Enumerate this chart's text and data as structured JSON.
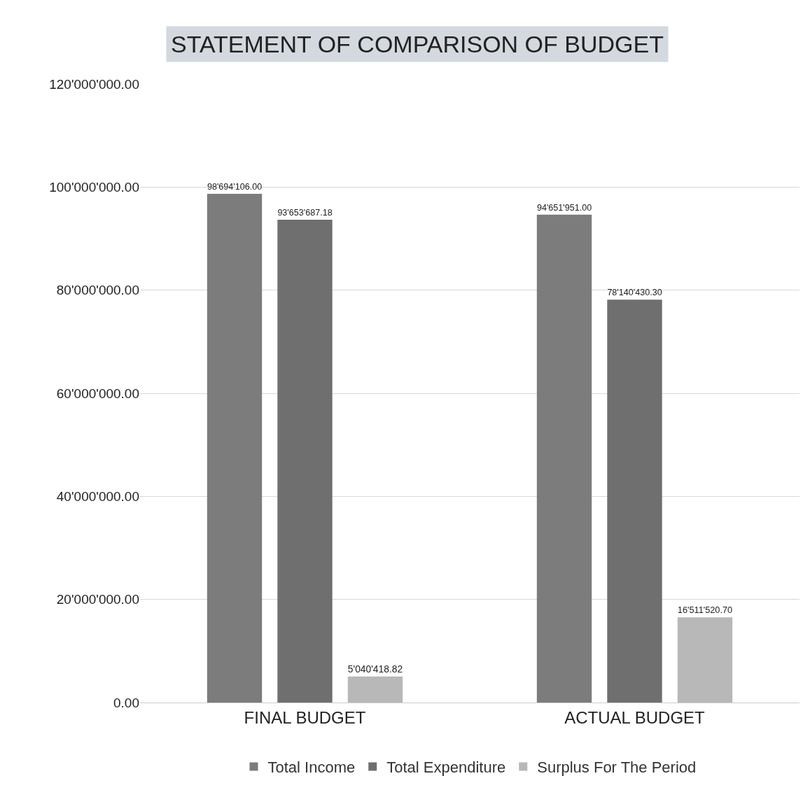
{
  "chart_data": {
    "type": "bar",
    "title": "STATEMENT OF COMPARISON OF BUDGET",
    "categories": [
      "FINAL BUDGET",
      "ACTUAL BUDGET"
    ],
    "series": [
      {
        "name": "Total Income",
        "color": "#7c7c7c",
        "values": [
          98694106.0,
          94651951.0
        ],
        "value_labels": [
          "98'694'106.00",
          "94'651'951.00"
        ]
      },
      {
        "name": "Total Expenditure",
        "color": "#6f6f6f",
        "values": [
          93653687.18,
          78140430.3
        ],
        "value_labels": [
          "93'653'687.18",
          "78'140'430.30"
        ]
      },
      {
        "name": "Surplus For The Period",
        "color": "#b8b8b8",
        "values": [
          5040418.82,
          16511520.7
        ],
        "value_labels": [
          "5'040'418.82",
          "16'511'520.70"
        ]
      }
    ],
    "ylim": [
      0,
      120000000
    ],
    "yticks": [
      {
        "value": 0,
        "label": "0.00"
      },
      {
        "value": 20000000,
        "label": "20'000'000.00"
      },
      {
        "value": 40000000,
        "label": "40'000'000.00"
      },
      {
        "value": 60000000,
        "label": "60'000'000.00"
      },
      {
        "value": 80000000,
        "label": "80'000'000.00"
      },
      {
        "value": 100000000,
        "label": "100'000'000.00"
      },
      {
        "value": 120000000,
        "label": "120'000'000.00"
      }
    ],
    "grid": "y",
    "legend": "bottom"
  }
}
